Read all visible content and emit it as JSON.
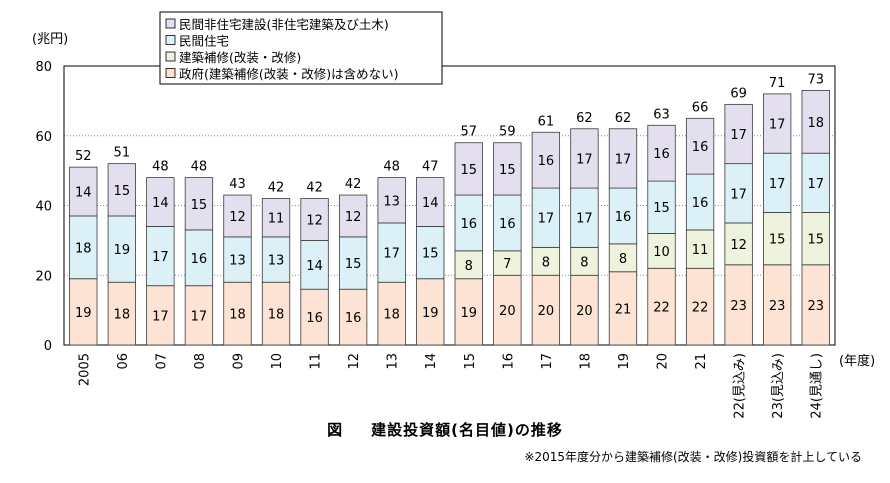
{
  "chart_data": {
    "type": "bar",
    "stacked": true,
    "title": "建設投資額(名目値)の推移",
    "unit_label": "(兆円)",
    "xlabel": "(年度)",
    "ylim": [
      0,
      80
    ],
    "yticks": [
      0,
      20,
      40,
      60,
      80
    ],
    "legend_position": "top-left",
    "categories": [
      "2005",
      "06",
      "07",
      "08",
      "09",
      "10",
      "11",
      "12",
      "13",
      "14",
      "15",
      "16",
      "17",
      "18",
      "19",
      "20",
      "21",
      "22(見込み)",
      "23(見込み)",
      "24(見通し)"
    ],
    "totals": [
      52,
      51,
      48,
      48,
      43,
      42,
      42,
      42,
      48,
      47,
      57,
      59,
      61,
      62,
      62,
      63,
      66,
      69,
      71,
      73
    ],
    "series": [
      {
        "name": "政府(建築補修(改装・改修)は含めない)",
        "color": "#fde3d3",
        "values": [
          19,
          18,
          17,
          17,
          18,
          18,
          16,
          16,
          18,
          19,
          19,
          20,
          20,
          20,
          21,
          22,
          22,
          23,
          23,
          23
        ]
      },
      {
        "name": "建築補修(改装・改修)",
        "color": "#eef3dd",
        "values": [
          null,
          null,
          null,
          null,
          null,
          null,
          null,
          null,
          null,
          null,
          8,
          7,
          8,
          8,
          8,
          10,
          11,
          12,
          15,
          15
        ]
      },
      {
        "name": "民間住宅",
        "color": "#dcf0f7",
        "values": [
          18,
          19,
          17,
          16,
          13,
          13,
          14,
          15,
          17,
          15,
          16,
          16,
          17,
          17,
          16,
          15,
          16,
          17,
          17,
          17
        ]
      },
      {
        "name": "民間非住宅建設(非住宅建築及び土木)",
        "color": "#e4dfef",
        "values": [
          14,
          15,
          14,
          15,
          12,
          11,
          12,
          12,
          13,
          14,
          15,
          15,
          16,
          17,
          17,
          16,
          16,
          17,
          17,
          18
        ]
      }
    ],
    "legend_order": [
      3,
      2,
      1,
      0
    ],
    "figure_label": "図",
    "note": "※2015年度分から建築補修(改装・改修)投資額を計上している"
  }
}
